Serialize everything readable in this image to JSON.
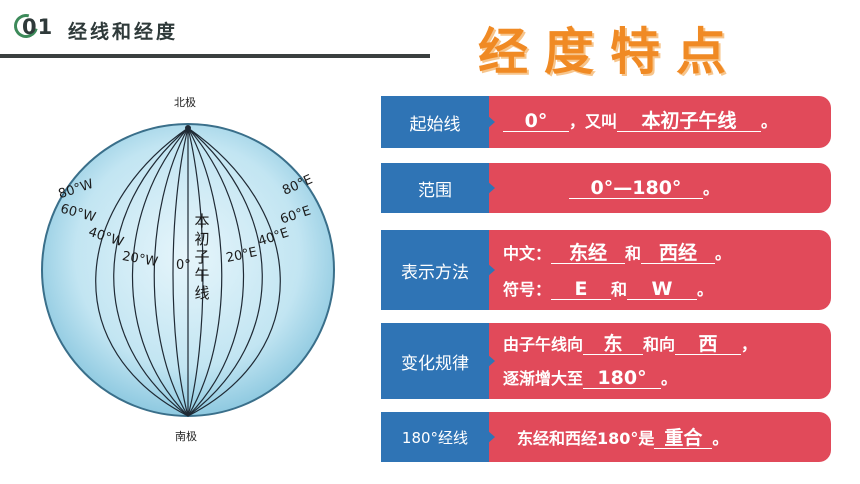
{
  "header": {
    "number": "01",
    "title": "经线和经度"
  },
  "slide_title": "经度特点",
  "globe": {
    "north_pole": "北极",
    "south_pole": "南极",
    "prime_meridian": [
      "本",
      "初",
      "子",
      "午",
      "线"
    ],
    "west_labels": [
      "80°W",
      "60°W",
      "40°W",
      "20°W"
    ],
    "center_label": "0°",
    "east_labels": [
      "20°E",
      "40°E",
      "60°E",
      "80°E"
    ],
    "colors": {
      "ocean_edge": "#8ec9e0",
      "ocean_center": "#e6f5fb",
      "lines": "#1f2a35"
    }
  },
  "rows": [
    {
      "label": "起始线",
      "pre": "",
      "ans1": "0°",
      "mid": "，又叫",
      "ans2": "本初子午线",
      "post": "。"
    },
    {
      "label": "范围",
      "ans": "0°—180°",
      "post": "。"
    },
    {
      "label": "表示方法",
      "line1": {
        "pre": "中文：",
        "ans1": "东经",
        "mid": "和",
        "ans2": "西经",
        "post": "。"
      },
      "line2": {
        "pre": "符号：",
        "ans1": "E",
        "mid": "和",
        "ans2": "W",
        "post": "。"
      }
    },
    {
      "label": "变化规律",
      "line1": {
        "pre": "由子午线向",
        "ans1": "东",
        "mid": "和向",
        "ans2": "西",
        "post": "，"
      },
      "line2": {
        "pre": "逐渐增大至",
        "ans1": "180°",
        "post": "。"
      }
    },
    {
      "label": "180°经线",
      "pre": "东经和西经180°是",
      "ans": "重合",
      "post": "。"
    }
  ],
  "colors": {
    "label_bg": "#2f74b5",
    "content_bg": "#e14a5a",
    "title": "#f08a24"
  }
}
